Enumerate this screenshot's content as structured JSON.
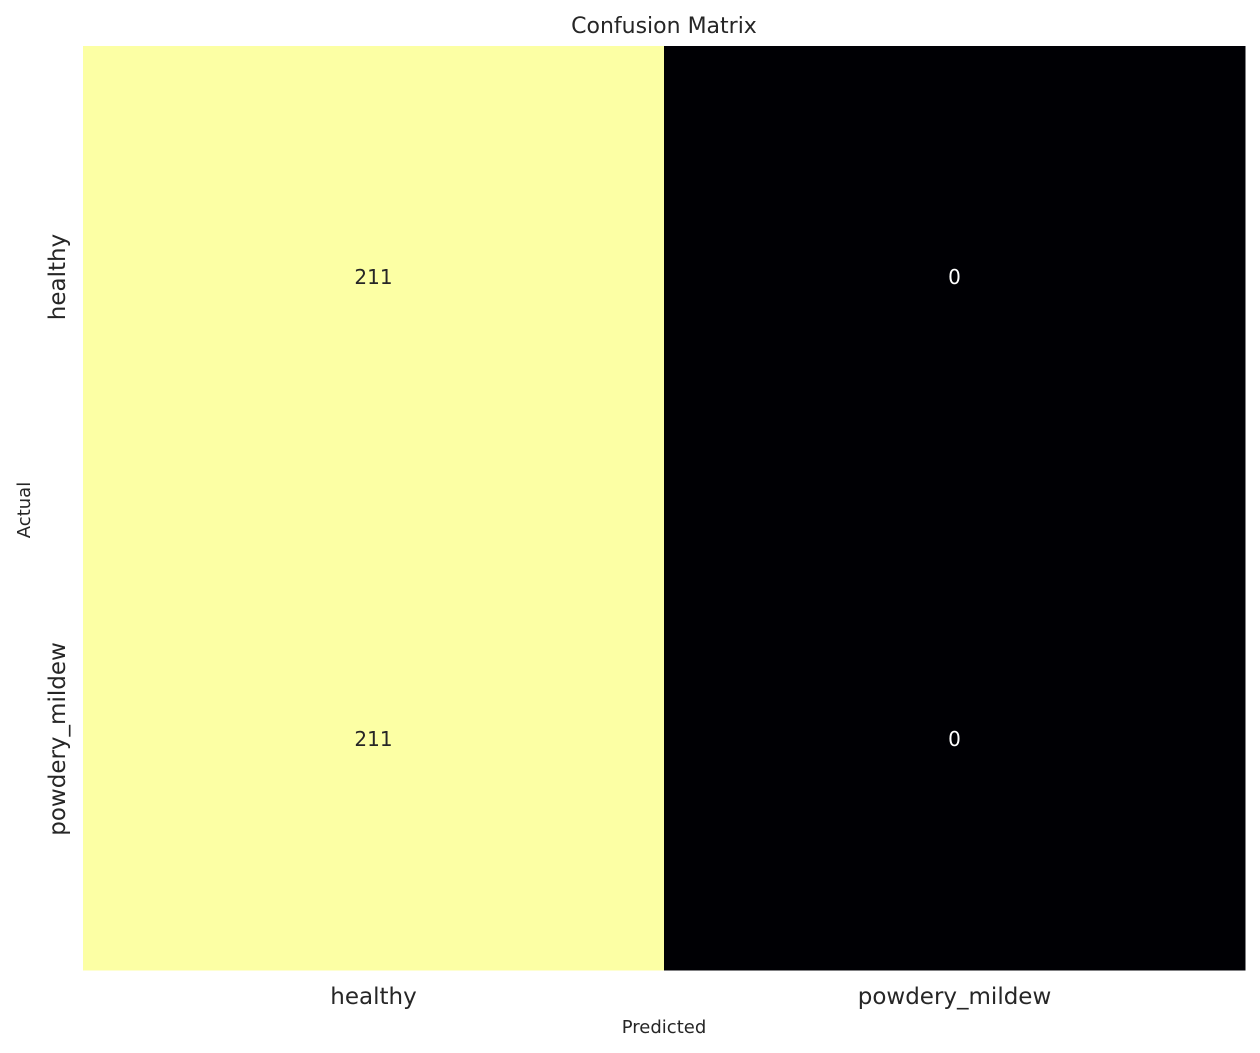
{
  "chart_data": {
    "type": "heatmap",
    "title": "Confusion Matrix",
    "xlabel": "Predicted",
    "ylabel": "Actual",
    "x_categories": [
      "healthy",
      "powdery_mildew"
    ],
    "y_categories": [
      "healthy",
      "powdery_mildew"
    ],
    "values": [
      [
        211,
        0
      ],
      [
        211,
        0
      ]
    ],
    "value_range": [
      0,
      211
    ],
    "colormap": "inferno",
    "colors": {
      "high": "#fcffa4",
      "low": "#000004",
      "label_on_light": "#262626",
      "label_on_dark": "#ffffff",
      "text": "#262626"
    },
    "grid": false,
    "colorbar": false
  }
}
